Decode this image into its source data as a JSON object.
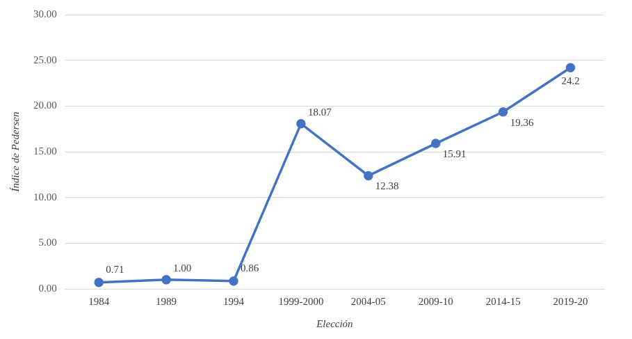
{
  "chart_data": {
    "type": "line",
    "x_label": "Elección",
    "y_label": "Índice de Pedersen",
    "categories": [
      "1984",
      "1989",
      "1994",
      "1999-2000",
      "2004-05",
      "2009-10",
      "2014-15",
      "2019-20"
    ],
    "values": [
      0.71,
      1.0,
      0.86,
      18.07,
      12.38,
      15.91,
      19.36,
      24.2
    ],
    "value_labels": [
      "0.71",
      "1.00",
      "0.86",
      "18.07",
      "12.38",
      "15.91",
      "19.36",
      "24.2"
    ],
    "color": "#4472c4",
    "marker": "circle",
    "line_style": "solid",
    "ylim": [
      0,
      30
    ],
    "yticks": [
      {
        "value": 0,
        "label": "0.00"
      },
      {
        "value": 5,
        "label": "5.00"
      },
      {
        "value": 10,
        "label": "10.00"
      },
      {
        "value": 15,
        "label": "15.00"
      },
      {
        "value": 20,
        "label": "20.00"
      },
      {
        "value": 25,
        "label": "25.00"
      },
      {
        "value": 30,
        "label": "30.00"
      }
    ],
    "grid": true,
    "data_labels": true
  }
}
